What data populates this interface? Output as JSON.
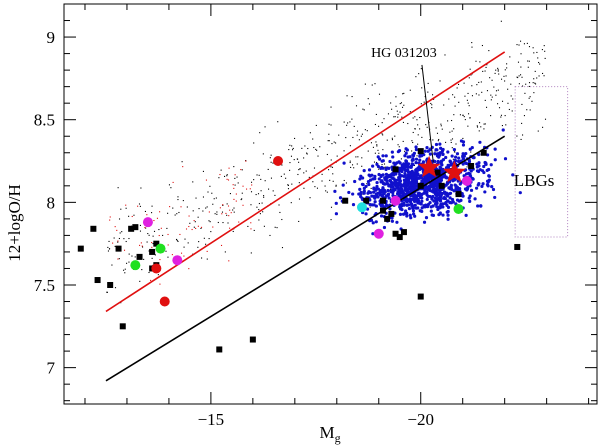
{
  "chart_data": {
    "type": "scatter",
    "xlabel": "M",
    "xlabel_subscript": "g",
    "ylabel": "12+logO/H",
    "xlim": [
      -11.5,
      -24.2
    ],
    "ylim": [
      6.78,
      9.2
    ],
    "xticks": [
      -15,
      -20
    ],
    "yticks": [
      7,
      7.5,
      8,
      8.5,
      9
    ],
    "colors": {
      "red": "#e01010",
      "blue": "#1010cc",
      "black": "#000000",
      "magenta": "#e020e0",
      "green": "#20e020",
      "cyan": "#20e0e0",
      "box": "#b080c0"
    },
    "lines": [
      {
        "color": "#e01010",
        "x": [
          -12.5,
          -22.0
        ],
        "y": [
          7.34,
          8.91
        ]
      },
      {
        "color": "#000000",
        "x": [
          -12.5,
          -22.0
        ],
        "y": [
          6.92,
          8.4
        ]
      }
    ],
    "annotations": [
      {
        "text": "HG 031203",
        "x": -19.6,
        "y": 8.88,
        "arrow_to": [
          -20.3,
          8.24
        ]
      },
      {
        "text": "LBGs",
        "x": -22.7,
        "y": 8.1
      }
    ],
    "lbg_box": {
      "x": [
        -22.25,
        -23.5
      ],
      "y": [
        7.79,
        8.7
      ]
    },
    "series_squares": [
      [
        -16.0,
        7.17
      ],
      [
        -15.2,
        7.11
      ],
      [
        -13.7,
        7.75
      ],
      [
        -13.3,
        7.67
      ],
      [
        -13.1,
        7.84
      ],
      [
        -13.2,
        7.85
      ],
      [
        -13.6,
        7.6
      ],
      [
        -13.7,
        7.62
      ],
      [
        -13.6,
        7.7
      ],
      [
        -12.9,
        7.25
      ],
      [
        -12.6,
        7.5
      ],
      [
        -12.3,
        7.53
      ],
      [
        -12.8,
        7.72
      ],
      [
        -11.9,
        7.72
      ],
      [
        -12.2,
        7.84
      ],
      [
        -18.2,
        8.01
      ],
      [
        -18.7,
        8.01
      ],
      [
        -19.1,
        8.01
      ],
      [
        -19.3,
        7.93
      ],
      [
        -19.4,
        7.81
      ],
      [
        -19.5,
        7.79
      ],
      [
        -19.6,
        7.82
      ],
      [
        -20.0,
        7.43
      ],
      [
        -19.4,
        8.2
      ],
      [
        -20.0,
        8.31
      ],
      [
        -20.0,
        8.1
      ],
      [
        -20.4,
        8.18
      ],
      [
        -20.5,
        8.1
      ],
      [
        -21.2,
        8.22
      ],
      [
        -21.5,
        8.3
      ],
      [
        -22.3,
        7.73
      ],
      [
        -19.1,
        7.95
      ],
      [
        -19.2,
        7.9
      ],
      [
        -20.9,
        8.05
      ]
    ],
    "series_circles": [
      {
        "color": "red",
        "x": -16.6,
        "y": 8.25
      },
      {
        "color": "red",
        "x": -13.7,
        "y": 7.6
      },
      {
        "color": "red",
        "x": -13.9,
        "y": 7.4
      },
      {
        "color": "magenta",
        "x": -13.5,
        "y": 7.88
      },
      {
        "color": "magenta",
        "x": -14.2,
        "y": 7.65
      },
      {
        "color": "magenta",
        "x": -19.4,
        "y": 8.01
      },
      {
        "color": "magenta",
        "x": -19.0,
        "y": 7.81
      },
      {
        "color": "magenta",
        "x": -21.1,
        "y": 8.13
      },
      {
        "color": "green",
        "x": -13.2,
        "y": 7.62
      },
      {
        "color": "green",
        "x": -13.8,
        "y": 7.72
      },
      {
        "color": "green",
        "x": -20.9,
        "y": 7.96
      },
      {
        "color": "cyan",
        "x": -18.6,
        "y": 7.97
      }
    ],
    "series_stars": [
      {
        "color": "red",
        "x": -20.2,
        "y": 8.21
      },
      {
        "color": "red",
        "x": -20.8,
        "y": 8.18
      }
    ]
  }
}
